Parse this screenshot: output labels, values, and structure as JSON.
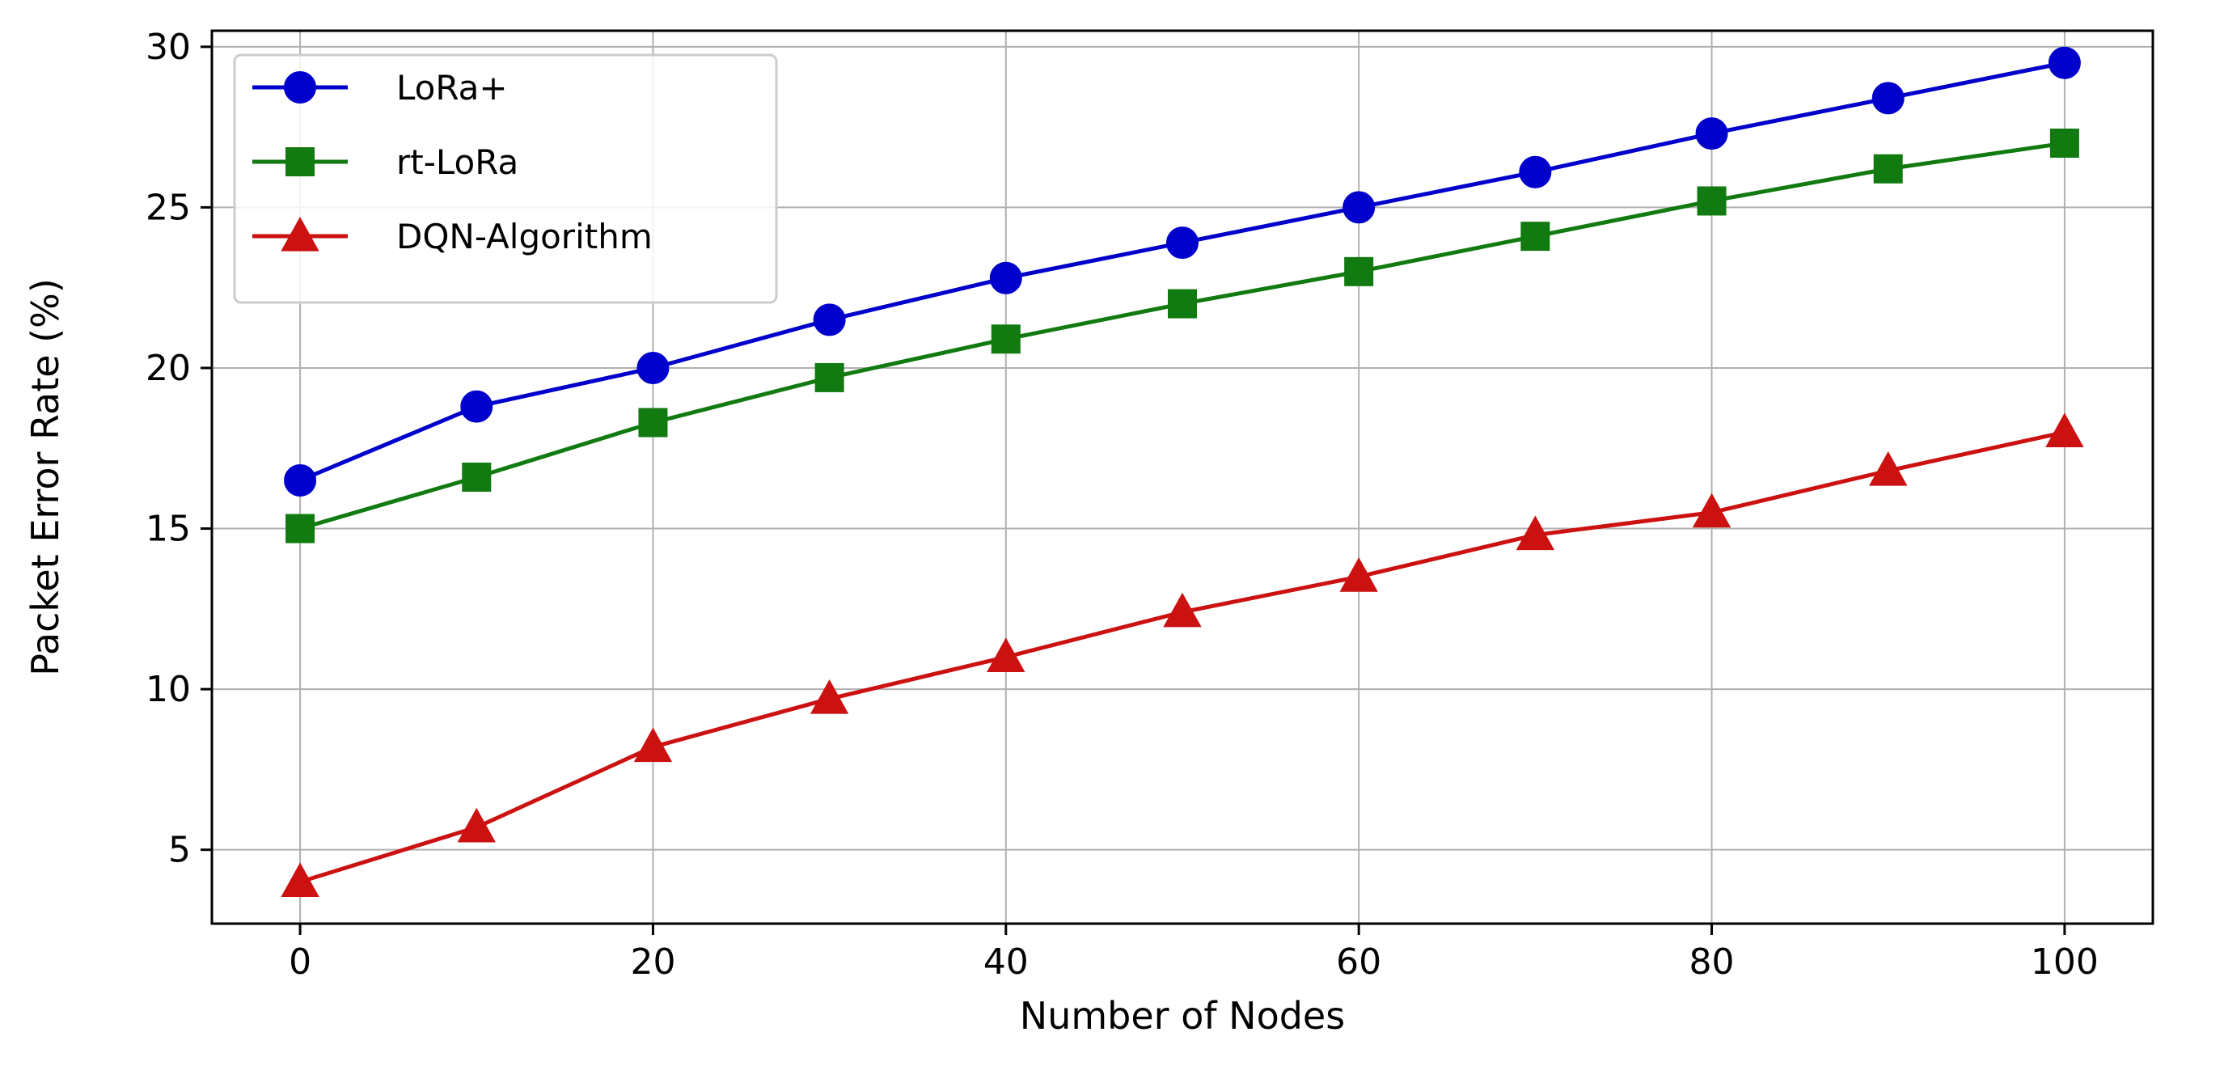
{
  "chart_data": {
    "type": "line",
    "title": "",
    "xlabel": "Number of Nodes",
    "ylabel": "Packet Error Rate (%)",
    "xlim": [
      -5,
      105
    ],
    "ylim": [
      2.7,
      30.5
    ],
    "x_ticks": [
      0,
      20,
      40,
      60,
      80,
      100
    ],
    "y_ticks": [
      5,
      10,
      15,
      20,
      25,
      30
    ],
    "grid": true,
    "legend_position": "upper-left",
    "x": [
      0,
      10,
      20,
      30,
      40,
      50,
      60,
      70,
      80,
      90,
      100
    ],
    "series": [
      {
        "name": "LoRa+",
        "color": "#0000cc",
        "marker": "circle",
        "values": [
          16.5,
          18.8,
          20.0,
          21.5,
          22.8,
          23.9,
          25.0,
          26.1,
          27.3,
          28.4,
          29.5
        ]
      },
      {
        "name": "rt-LoRa",
        "color": "#117a11",
        "marker": "square",
        "values": [
          15.0,
          16.6,
          18.3,
          19.7,
          20.9,
          22.0,
          23.0,
          24.1,
          25.2,
          26.2,
          27.0
        ]
      },
      {
        "name": "DQN-Algorithm",
        "color": "#cc1111",
        "marker": "triangle",
        "values": [
          4.0,
          5.7,
          8.2,
          9.7,
          11.0,
          12.4,
          13.5,
          14.8,
          15.5,
          16.8,
          18.0
        ]
      }
    ]
  }
}
